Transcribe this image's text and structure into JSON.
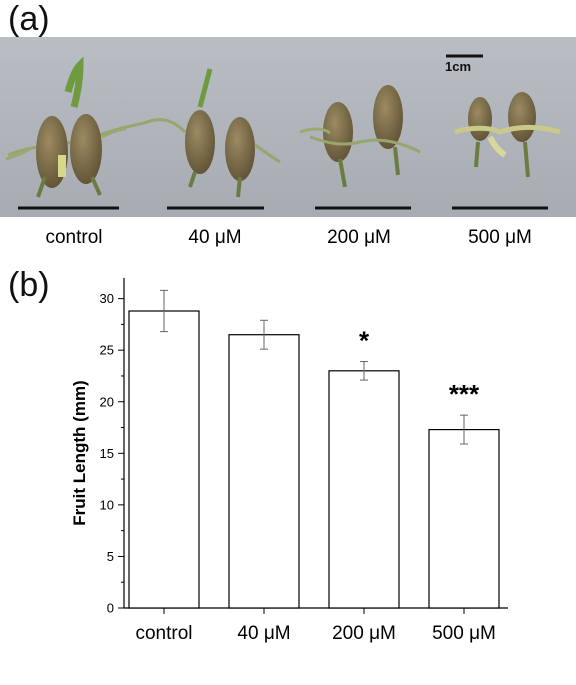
{
  "panel_a": {
    "label": "(a)",
    "scale_bar_label": "1cm",
    "photo_labels": [
      "control",
      "40 μM",
      "200 μM",
      "500 μM"
    ]
  },
  "panel_b": {
    "label": "(b)"
  },
  "chart_data": {
    "type": "bar",
    "categories": [
      "control",
      "40 μM",
      "200 μM",
      "500 μM"
    ],
    "values": [
      28.8,
      26.5,
      23.0,
      17.3
    ],
    "errors": [
      2.0,
      1.4,
      0.9,
      1.4
    ],
    "significance": [
      "",
      "",
      "*",
      "***"
    ],
    "xlabel": "",
    "ylabel": "Fruit Length (mm)",
    "ylim": [
      0,
      32
    ],
    "yticks": [
      0,
      5,
      10,
      15,
      20,
      25,
      30
    ],
    "grid": false,
    "bar_fill": "#ffffff",
    "bar_stroke": "#000000"
  }
}
